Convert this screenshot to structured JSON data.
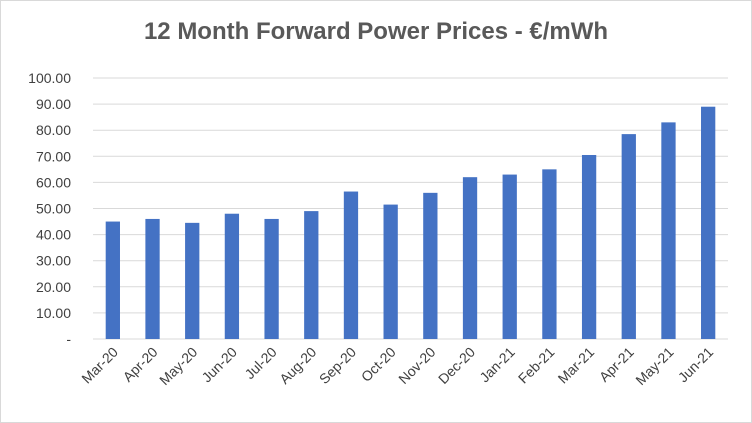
{
  "chart_data": {
    "type": "bar",
    "title": "12 Month Forward Power Prices - €/mWh",
    "xlabel": "",
    "ylabel": "",
    "ylim": [
      0,
      100
    ],
    "yticks": [
      "-",
      "10.00",
      "20.00",
      "30.00",
      "40.00",
      "50.00",
      "60.00",
      "70.00",
      "80.00",
      "90.00",
      "100.00"
    ],
    "grid": true,
    "legend": "none",
    "bar_color": "#4472c4",
    "categories": [
      "Mar-20",
      "Apr-20",
      "May-20",
      "Jun-20",
      "Jul-20",
      "Aug-20",
      "Sep-20",
      "Oct-20",
      "Nov-20",
      "Dec-20",
      "Jan-21",
      "Feb-21",
      "Mar-21",
      "Apr-21",
      "May-21",
      "Jun-21"
    ],
    "values": [
      45.0,
      46.0,
      44.5,
      48.0,
      46.0,
      49.0,
      56.5,
      51.5,
      56.0,
      62.0,
      63.0,
      65.0,
      70.5,
      78.5,
      83.0,
      89.0
    ]
  }
}
